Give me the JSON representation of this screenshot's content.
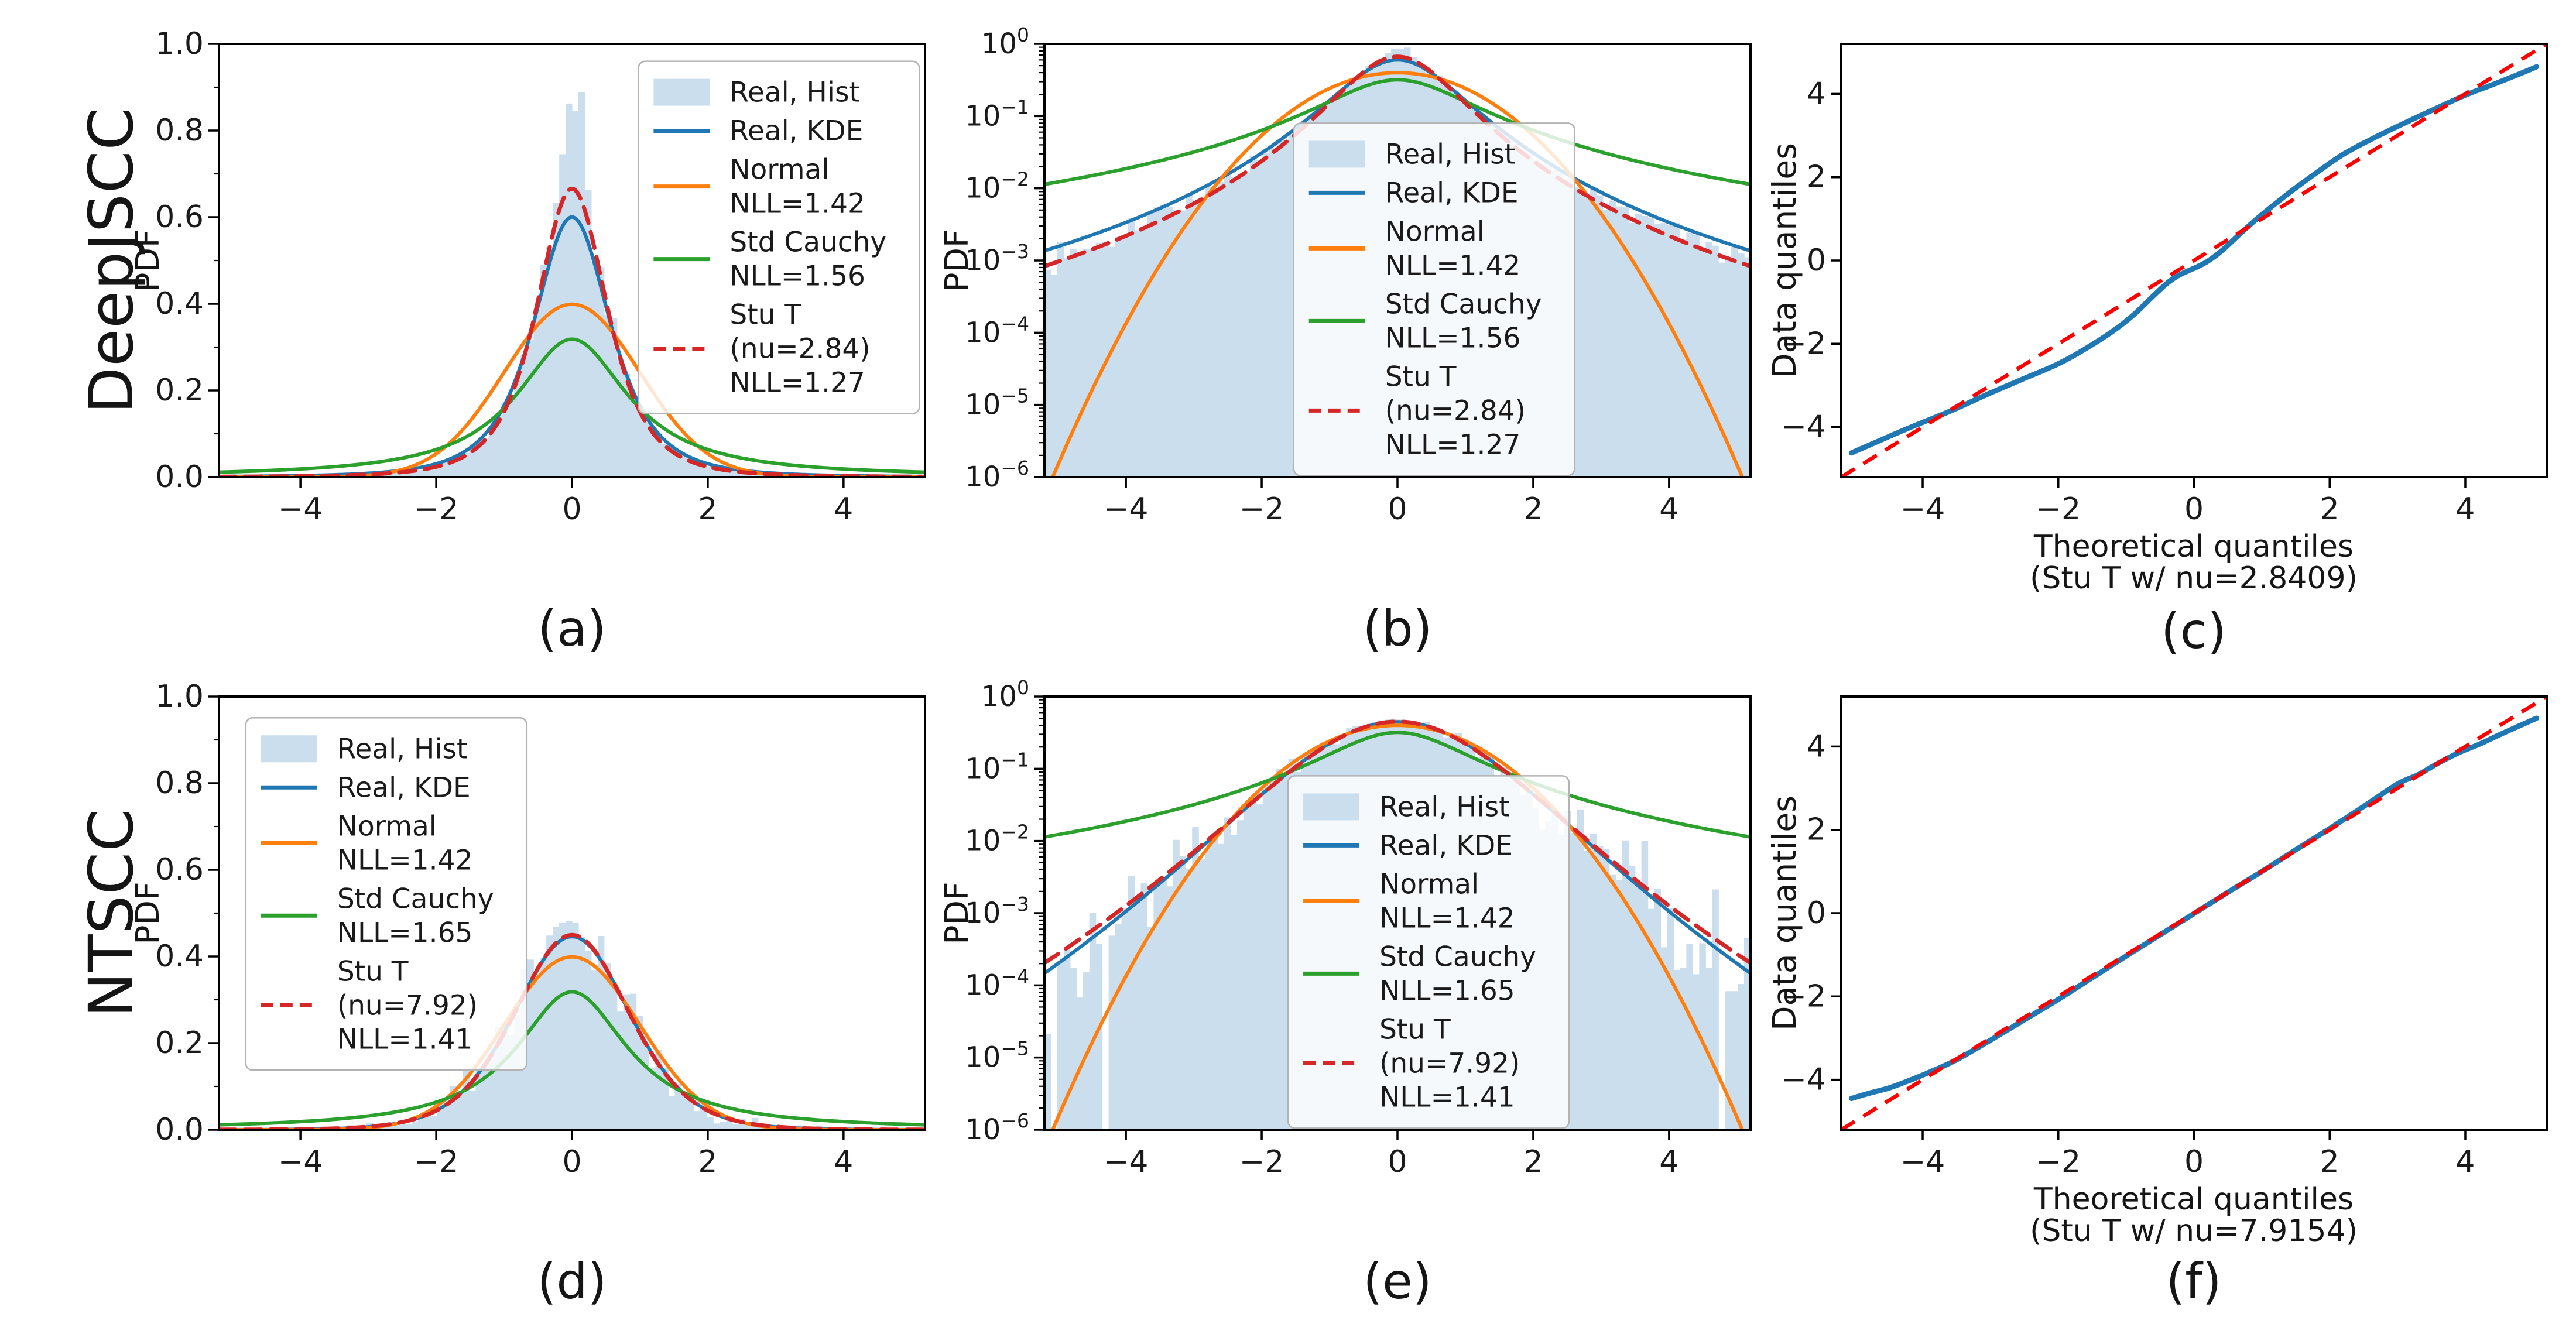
{
  "figure": {
    "background": "#ffffff"
  },
  "rows": [
    {
      "label": "DeepJSCC"
    },
    {
      "label": "NTSCC"
    }
  ],
  "colors": {
    "hist_fill": "#cbdeee",
    "kde": "#1f77b4",
    "normal": "#ff7f0e",
    "cauchy": "#2ca02c",
    "stut": "#d62728",
    "qq_data": "#1f77b4",
    "qq_ref": "#ff0000",
    "spine": "#000000",
    "tick_text": "#1a1a1a",
    "legend_bg": "rgba(255,255,255,0.82)",
    "legend_border": "#b3b3b3"
  },
  "chart_data": [
    {
      "id": "a",
      "caption": "(a)",
      "type": "area",
      "row": 0,
      "col": 0,
      "yscale": "linear",
      "xlim": [
        -5.2,
        5.2
      ],
      "ylim": [
        0,
        1.0
      ],
      "xticks": [
        -4,
        -2,
        0,
        2,
        4
      ],
      "yticks": [
        0.0,
        0.2,
        0.4,
        0.6,
        0.8,
        1.0
      ],
      "ylabel": "PDF",
      "xlabel": null,
      "grid": false,
      "hist": {
        "name": "Real, Hist",
        "nu": 2.7,
        "scale": 0.575,
        "c": 0.3643,
        "spike_amp": 0.45,
        "spike_sigma": 0.16,
        "noise": [
          0.04,
          0.25
        ],
        "bins": 110,
        "seed": 13,
        "dropout": 0
      },
      "curves": [
        {
          "name": "Real, KDE",
          "dist": "t",
          "nu": 2.6,
          "scale": 0.605,
          "c": 0.3632,
          "color_key": "kde",
          "dashed": false
        },
        {
          "name": "Normal",
          "dist": "normal",
          "sigma": 1.0,
          "nll": 1.42,
          "color_key": "normal",
          "dashed": false
        },
        {
          "name": "Std Cauchy",
          "dist": "cauchy",
          "nll": 1.56,
          "color_key": "cauchy",
          "dashed": false
        },
        {
          "name": "Stu T",
          "dist": "t",
          "nu": 2.84,
          "scale": 0.55,
          "c": 0.3661,
          "nll": 1.27,
          "color_key": "stut",
          "dashed": true
        }
      ],
      "legend": {
        "fx": 0.594,
        "fy": 0.04,
        "fw": 0.398,
        "entries": [
          {
            "swatch": "patch",
            "color_key": "hist_fill",
            "lines": [
              "Real, Hist"
            ]
          },
          {
            "swatch": "line",
            "color_key": "kde",
            "lines": [
              "Real, KDE"
            ]
          },
          {
            "swatch": "line",
            "color_key": "normal",
            "lines": [
              "Normal",
              "NLL=1.42"
            ]
          },
          {
            "swatch": "line",
            "color_key": "cauchy",
            "lines": [
              "Std Cauchy",
              "NLL=1.56"
            ]
          },
          {
            "swatch": "dash",
            "color_key": "stut",
            "lines": [
              "Stu T",
              "(nu=2.84)",
              "NLL=1.27"
            ]
          }
        ]
      }
    },
    {
      "id": "b",
      "caption": "(b)",
      "type": "area",
      "row": 0,
      "col": 1,
      "yscale": "log",
      "xlim": [
        -5.2,
        5.2
      ],
      "ylim": [
        1e-06,
        1.0
      ],
      "xticks": [
        -4,
        -2,
        0,
        2,
        4
      ],
      "ytick_exponents": [
        0,
        -1,
        -2,
        -3,
        -4,
        -5,
        -6
      ],
      "ylabel": "PDF",
      "xlabel": null,
      "grid": false,
      "hist": {
        "name": "Real, Hist",
        "nu": 2.7,
        "scale": 0.575,
        "c": 0.3643,
        "spike_amp": 0.45,
        "spike_sigma": 0.16,
        "noise": [
          0.04,
          0.25
        ],
        "bins": 110,
        "seed": 13,
        "dropout": 0
      },
      "curves": [
        {
          "name": "Real, KDE",
          "dist": "t",
          "nu": 2.6,
          "scale": 0.605,
          "c": 0.3632,
          "color_key": "kde",
          "dashed": false
        },
        {
          "name": "Normal",
          "dist": "normal",
          "sigma": 1.0,
          "nll": 1.42,
          "color_key": "normal",
          "dashed": false
        },
        {
          "name": "Std Cauchy",
          "dist": "cauchy",
          "nll": 1.56,
          "color_key": "cauchy",
          "dashed": false
        },
        {
          "name": "Stu T",
          "dist": "t",
          "nu": 2.84,
          "scale": 0.55,
          "c": 0.3661,
          "nll": 1.27,
          "color_key": "stut",
          "dashed": true
        }
      ],
      "legend": {
        "fx": 0.353,
        "fy": 0.183,
        "fw": 0.398,
        "entries": [
          {
            "swatch": "patch",
            "color_key": "hist_fill",
            "lines": [
              "Real, Hist"
            ]
          },
          {
            "swatch": "line",
            "color_key": "kde",
            "lines": [
              "Real, KDE"
            ]
          },
          {
            "swatch": "line",
            "color_key": "normal",
            "lines": [
              "Normal",
              "NLL=1.42"
            ]
          },
          {
            "swatch": "line",
            "color_key": "cauchy",
            "lines": [
              "Std Cauchy",
              "NLL=1.56"
            ]
          },
          {
            "swatch": "dash",
            "color_key": "stut",
            "lines": [
              "Stu T",
              "(nu=2.84)",
              "NLL=1.27"
            ]
          }
        ]
      }
    },
    {
      "id": "c",
      "caption": "(c)",
      "type": "line",
      "row": 0,
      "col": 2,
      "yscale": "linear",
      "xlim": [
        -5.2,
        5.2
      ],
      "ylim": [
        -5.2,
        5.2
      ],
      "xticks": [
        -4,
        -2,
        0,
        2,
        4
      ],
      "yticks": [
        -4,
        -2,
        0,
        2,
        4
      ],
      "ylabel": "Data quantiles",
      "xlabel": [
        "Theoretical quantiles",
        "(Stu T w/ nu=2.8409)"
      ],
      "grid": false,
      "qq": {
        "ref": [
          [
            -5.2,
            -5.2
          ],
          [
            5.2,
            5.2
          ]
        ],
        "points": [
          [
            -5.05,
            -4.62
          ],
          [
            -4.6,
            -4.3
          ],
          [
            -4.2,
            -4.02
          ],
          [
            -3.6,
            -3.62
          ],
          [
            -3.0,
            -3.18
          ],
          [
            -2.5,
            -2.83
          ],
          [
            -2.0,
            -2.48
          ],
          [
            -1.6,
            -2.12
          ],
          [
            -1.2,
            -1.7
          ],
          [
            -0.9,
            -1.32
          ],
          [
            -0.6,
            -0.85
          ],
          [
            -0.4,
            -0.55
          ],
          [
            -0.25,
            -0.38
          ],
          [
            -0.1,
            -0.26
          ],
          [
            0.05,
            -0.15
          ],
          [
            0.2,
            -0.02
          ],
          [
            0.4,
            0.22
          ],
          [
            0.6,
            0.52
          ],
          [
            0.8,
            0.82
          ],
          [
            1.0,
            1.1
          ],
          [
            1.4,
            1.62
          ],
          [
            1.8,
            2.1
          ],
          [
            2.2,
            2.55
          ],
          [
            2.6,
            2.9
          ],
          [
            3.0,
            3.22
          ],
          [
            3.5,
            3.6
          ],
          [
            4.0,
            3.97
          ],
          [
            4.4,
            4.22
          ],
          [
            4.8,
            4.48
          ],
          [
            5.05,
            4.65
          ]
        ]
      }
    },
    {
      "id": "d",
      "caption": "(d)",
      "type": "area",
      "row": 1,
      "col": 0,
      "yscale": "linear",
      "xlim": [
        -5.2,
        5.2
      ],
      "ylim": [
        0,
        1.0
      ],
      "xticks": [
        -4,
        -2,
        0,
        2,
        4
      ],
      "yticks": [
        0.0,
        0.2,
        0.4,
        0.6,
        0.8,
        1.0
      ],
      "ylabel": "PDF",
      "xlabel": null,
      "grid": false,
      "hist": {
        "name": "Real, Hist",
        "nu": 8.5,
        "scale": 0.85,
        "c": 0.3872,
        "spike_amp": 0.05,
        "spike_sigma": 0.45,
        "noise": [
          0.05,
          1.1
        ],
        "bins": 110,
        "seed": 29,
        "dropout": 0.18
      },
      "curves": [
        {
          "name": "Real, KDE",
          "dist": "t",
          "nu": 9.0,
          "scale": 0.87,
          "c": 0.3878,
          "color_key": "kde",
          "dashed": false
        },
        {
          "name": "Normal",
          "dist": "normal",
          "sigma": 1.0,
          "nll": 1.42,
          "color_key": "normal",
          "dashed": false
        },
        {
          "name": "Std Cauchy",
          "dist": "cauchy",
          "nll": 1.65,
          "color_key": "cauchy",
          "dashed": false
        },
        {
          "name": "Stu T",
          "dist": "t",
          "nu": 7.92,
          "scale": 0.86,
          "c": 0.3866,
          "nll": 1.41,
          "color_key": "stut",
          "dashed": true
        }
      ],
      "legend": {
        "fx": 0.038,
        "fy": 0.049,
        "fw": 0.398,
        "entries": [
          {
            "swatch": "patch",
            "color_key": "hist_fill",
            "lines": [
              "Real, Hist"
            ]
          },
          {
            "swatch": "line",
            "color_key": "kde",
            "lines": [
              "Real, KDE"
            ]
          },
          {
            "swatch": "line",
            "color_key": "normal",
            "lines": [
              "Normal",
              "NLL=1.42"
            ]
          },
          {
            "swatch": "line",
            "color_key": "cauchy",
            "lines": [
              "Std Cauchy",
              "NLL=1.65"
            ]
          },
          {
            "swatch": "dash",
            "color_key": "stut",
            "lines": [
              "Stu T",
              "(nu=7.92)",
              "NLL=1.41"
            ]
          }
        ]
      }
    },
    {
      "id": "e",
      "caption": "(e)",
      "type": "area",
      "row": 1,
      "col": 1,
      "yscale": "log",
      "xlim": [
        -5.2,
        5.2
      ],
      "ylim": [
        1e-06,
        1.0
      ],
      "xticks": [
        -4,
        -2,
        0,
        2,
        4
      ],
      "ytick_exponents": [
        0,
        -1,
        -2,
        -3,
        -4,
        -5,
        -6
      ],
      "ylabel": "PDF",
      "xlabel": null,
      "grid": false,
      "hist": {
        "name": "Real, Hist",
        "nu": 8.5,
        "scale": 0.85,
        "c": 0.3872,
        "spike_amp": 0.05,
        "spike_sigma": 0.45,
        "noise": [
          0.05,
          1.1
        ],
        "bins": 110,
        "seed": 29,
        "dropout": 0.18
      },
      "curves": [
        {
          "name": "Real, KDE",
          "dist": "t",
          "nu": 9.0,
          "scale": 0.87,
          "c": 0.3878,
          "color_key": "kde",
          "dashed": false
        },
        {
          "name": "Normal",
          "dist": "normal",
          "sigma": 1.0,
          "nll": 1.42,
          "color_key": "normal",
          "dashed": false
        },
        {
          "name": "Std Cauchy",
          "dist": "cauchy",
          "nll": 1.65,
          "color_key": "cauchy",
          "dashed": false
        },
        {
          "name": "Stu T",
          "dist": "t",
          "nu": 7.92,
          "scale": 0.86,
          "c": 0.3866,
          "nll": 1.41,
          "color_key": "stut",
          "dashed": true
        }
      ],
      "legend": {
        "fx": 0.345,
        "fy": 0.183,
        "fw": 0.398,
        "entries": [
          {
            "swatch": "patch",
            "color_key": "hist_fill",
            "lines": [
              "Real, Hist"
            ]
          },
          {
            "swatch": "line",
            "color_key": "kde",
            "lines": [
              "Real, KDE"
            ]
          },
          {
            "swatch": "line",
            "color_key": "normal",
            "lines": [
              "Normal",
              "NLL=1.42"
            ]
          },
          {
            "swatch": "line",
            "color_key": "cauchy",
            "lines": [
              "Std Cauchy",
              "NLL=1.65"
            ]
          },
          {
            "swatch": "dash",
            "color_key": "stut",
            "lines": [
              "Stu T",
              "(nu=7.92)",
              "NLL=1.41"
            ]
          }
        ]
      }
    },
    {
      "id": "f",
      "caption": "(f)",
      "type": "line",
      "row": 1,
      "col": 2,
      "yscale": "linear",
      "xlim": [
        -5.2,
        5.2
      ],
      "ylim": [
        -5.2,
        5.2
      ],
      "xticks": [
        -4,
        -2,
        0,
        2,
        4
      ],
      "yticks": [
        -4,
        -2,
        0,
        2,
        4
      ],
      "ylabel": "Data quantiles",
      "xlabel": [
        "Theoretical quantiles",
        "(Stu T w/ nu=7.9154)"
      ],
      "grid": false,
      "qq": {
        "ref": [
          [
            -5.2,
            -5.2
          ],
          [
            5.2,
            5.2
          ]
        ],
        "points": [
          [
            -5.05,
            -4.45
          ],
          [
            -4.8,
            -4.33
          ],
          [
            -4.5,
            -4.2
          ],
          [
            -4.2,
            -4.02
          ],
          [
            -3.9,
            -3.82
          ],
          [
            -3.5,
            -3.52
          ],
          [
            -3.0,
            -3.05
          ],
          [
            -2.5,
            -2.56
          ],
          [
            -2.0,
            -2.07
          ],
          [
            -1.5,
            -1.55
          ],
          [
            -1.0,
            -1.03
          ],
          [
            -0.5,
            -0.52
          ],
          [
            0.0,
            -0.01
          ],
          [
            0.5,
            0.5
          ],
          [
            1.0,
            1.0
          ],
          [
            1.5,
            1.52
          ],
          [
            2.0,
            2.03
          ],
          [
            2.5,
            2.56
          ],
          [
            3.0,
            3.1
          ],
          [
            3.3,
            3.32
          ],
          [
            3.6,
            3.6
          ],
          [
            3.9,
            3.85
          ],
          [
            4.2,
            4.05
          ],
          [
            4.5,
            4.28
          ],
          [
            4.8,
            4.5
          ],
          [
            5.05,
            4.68
          ]
        ]
      }
    }
  ]
}
